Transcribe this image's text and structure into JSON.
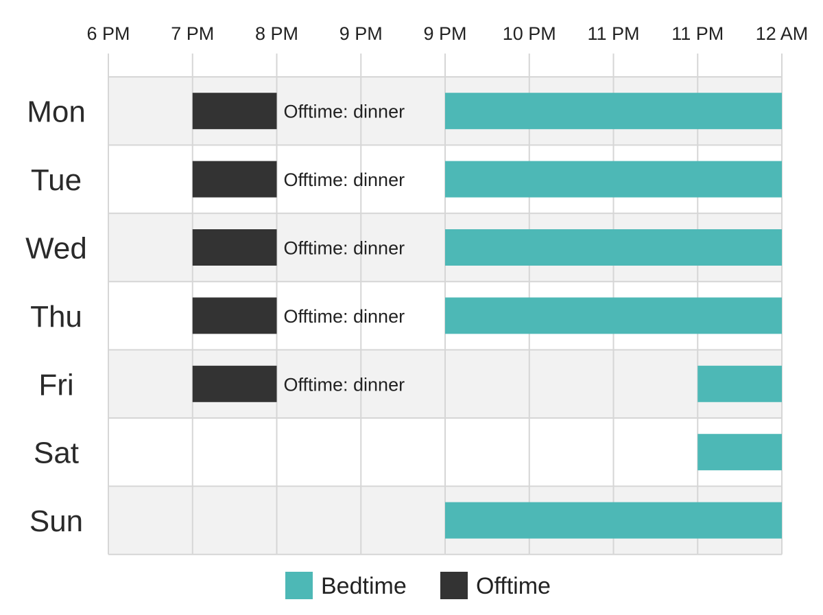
{
  "chart_data": {
    "type": "gantt",
    "x_ticks": [
      "6 PM",
      "7 PM",
      "8 PM",
      "9 PM",
      "9 PM",
      "10 PM",
      "11 PM",
      "11 PM",
      "12 AM"
    ],
    "days": [
      "Mon",
      "Tue",
      "Wed",
      "Thu",
      "Fri",
      "Sat",
      "Sun"
    ],
    "series": [
      {
        "name": "Bedtime",
        "color": "#4db8b6"
      },
      {
        "name": "Offtime",
        "color": "#333333"
      }
    ],
    "tasks": [
      {
        "day": "Mon",
        "series": "Offtime",
        "start_tick": 1,
        "end_tick": 2,
        "label": "Offtime: dinner"
      },
      {
        "day": "Mon",
        "series": "Bedtime",
        "start_tick": 4,
        "end_tick": 8,
        "label": ""
      },
      {
        "day": "Tue",
        "series": "Offtime",
        "start_tick": 1,
        "end_tick": 2,
        "label": "Offtime: dinner"
      },
      {
        "day": "Tue",
        "series": "Bedtime",
        "start_tick": 4,
        "end_tick": 8,
        "label": ""
      },
      {
        "day": "Wed",
        "series": "Offtime",
        "start_tick": 1,
        "end_tick": 2,
        "label": "Offtime: dinner"
      },
      {
        "day": "Wed",
        "series": "Bedtime",
        "start_tick": 4,
        "end_tick": 8,
        "label": ""
      },
      {
        "day": "Thu",
        "series": "Offtime",
        "start_tick": 1,
        "end_tick": 2,
        "label": "Offtime: dinner"
      },
      {
        "day": "Thu",
        "series": "Bedtime",
        "start_tick": 4,
        "end_tick": 8,
        "label": ""
      },
      {
        "day": "Fri",
        "series": "Offtime",
        "start_tick": 1,
        "end_tick": 2,
        "label": "Offtime: dinner"
      },
      {
        "day": "Fri",
        "series": "Bedtime",
        "start_tick": 7,
        "end_tick": 8,
        "label": ""
      },
      {
        "day": "Sat",
        "series": "Bedtime",
        "start_tick": 7,
        "end_tick": 8,
        "label": ""
      },
      {
        "day": "Sun",
        "series": "Bedtime",
        "start_tick": 4,
        "end_tick": 8,
        "label": ""
      }
    ],
    "grid": true,
    "row_shading": "alternating",
    "legend_position": "bottom-center",
    "title": "",
    "xlabel": "",
    "ylabel": ""
  }
}
